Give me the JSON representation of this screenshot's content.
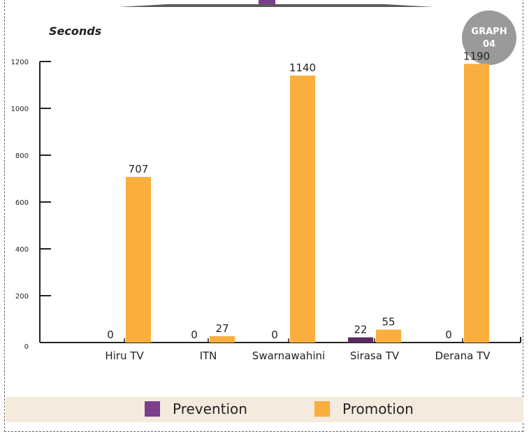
{
  "badge": {
    "line1": "GRAPH",
    "line2": "04"
  },
  "colors": {
    "prevention": "#5a2b5f",
    "promotion": "#f9ae3e",
    "prevention_legend": "#7b3f8e",
    "banner": "#5b5b5b",
    "accent": "#7b3f8e"
  },
  "chart_data": {
    "type": "bar",
    "categories": [
      "Hiru TV",
      "ITN",
      "Swarnawahini",
      "Sirasa TV",
      "Derana TV"
    ],
    "series": [
      {
        "name": "Prevention",
        "values": [
          0,
          0,
          0,
          22,
          0
        ]
      },
      {
        "name": "Promotion",
        "values": [
          707,
          27,
          1140,
          55,
          1190
        ]
      }
    ],
    "ylabel": "Seconds",
    "ylim": [
      0,
      1200
    ],
    "yticks": [
      0,
      200,
      400,
      600,
      800,
      1000,
      1200
    ],
    "legend_position": "bottom",
    "grid": false
  },
  "legend": {
    "prevention": "Prevention",
    "promotion": "Promotion"
  }
}
